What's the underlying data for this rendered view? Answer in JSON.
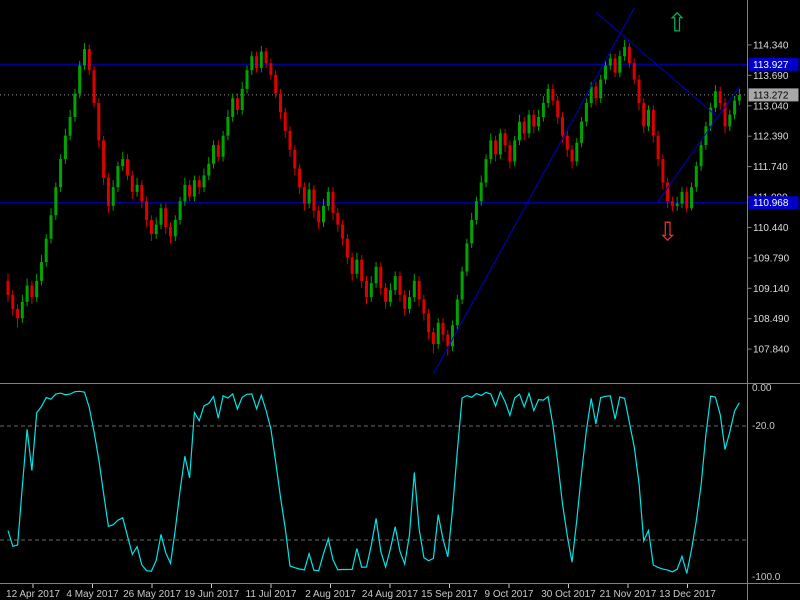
{
  "colors": {
    "background": "#000000",
    "bull": "#00A400",
    "bear": "#DD0000",
    "object_blue": "#0000C8",
    "indicator_line": "#00E5E5",
    "axis_text": "#C8C8C8",
    "price_text": "#DCDCDC",
    "divider": "#808080",
    "level_dash": "#6A6A6A",
    "current_tag_bg": "#A8A8A8",
    "current_tag_fg": "#000000",
    "hline_tag_fg": "#FFFFFF",
    "arrow_up": "#00B050",
    "arrow_down": "#E03030",
    "current_price_line": "#909090"
  },
  "chart_data": {
    "type": "candlestick",
    "x_labels": [
      "12 Apr 2017",
      "4 May 2017",
      "26 May 2017",
      "19 Jun 2017",
      "11 Jul 2017",
      "2 Aug 2017",
      "24 Aug 2017",
      "15 Sep 2017",
      "9 Oct 2017",
      "30 Oct 2017",
      "21 Nov 2017",
      "13 Dec 2017"
    ],
    "price_axis_labels": [
      "114.340",
      "113.690",
      "113.040",
      "112.390",
      "111.740",
      "111.090",
      "110.440",
      "109.790",
      "109.140",
      "108.490",
      "107.840"
    ],
    "price_axis_range": [
      107.38,
      115.3
    ],
    "current_price": 113.272,
    "current_price_label": "113.272",
    "hlines": [
      {
        "price": 113.927,
        "label": "113.927"
      },
      {
        "price": 110.968,
        "label": "110.968"
      }
    ],
    "trendlines": [
      {
        "from_index": 89,
        "from_price": 107.31,
        "to_index": 131,
        "to_price": 115.13
      },
      {
        "from_index": 123,
        "from_price": 115.04,
        "to_index": 148,
        "to_price": 112.84
      },
      {
        "from_index": 136,
        "from_price": 111.0,
        "to_index": 153,
        "to_price": 113.45
      }
    ],
    "arrows": [
      {
        "direction": "up",
        "index": 140,
        "price": 114.88
      },
      {
        "direction": "down",
        "index": 138,
        "price": 110.42
      }
    ],
    "indicator": {
      "name": "williams-percent-range",
      "type": "line",
      "period": 14,
      "range": [
        0,
        -100
      ],
      "levels": [
        -20,
        -80
      ],
      "axis_labels": [
        "0.00",
        "-20.0",
        "-100.0"
      ],
      "axis_label_values": [
        0,
        -20,
        -100
      ]
    },
    "candles": [
      [
        109.3,
        109.45,
        108.85,
        109.0
      ],
      [
        109.0,
        109.1,
        108.55,
        108.7
      ],
      [
        108.7,
        108.8,
        108.3,
        108.5
      ],
      [
        108.5,
        109.0,
        108.4,
        108.85
      ],
      [
        108.85,
        109.35,
        108.75,
        109.2
      ],
      [
        109.2,
        109.3,
        108.8,
        108.95
      ],
      [
        108.95,
        109.45,
        108.85,
        109.3
      ],
      [
        109.3,
        109.85,
        109.2,
        109.7
      ],
      [
        109.7,
        110.3,
        109.6,
        110.2
      ],
      [
        110.2,
        110.85,
        110.1,
        110.7
      ],
      [
        110.7,
        111.4,
        110.6,
        111.3
      ],
      [
        111.3,
        112.0,
        111.2,
        111.9
      ],
      [
        111.9,
        112.55,
        111.8,
        112.4
      ],
      [
        112.4,
        112.95,
        112.3,
        112.8
      ],
      [
        112.8,
        113.4,
        112.7,
        113.3
      ],
      [
        113.3,
        114.0,
        113.2,
        113.9
      ],
      [
        113.9,
        114.38,
        113.8,
        114.25
      ],
      [
        114.25,
        114.35,
        113.7,
        113.8
      ],
      [
        113.8,
        113.9,
        113.0,
        113.1
      ],
      [
        113.1,
        113.2,
        112.15,
        112.3
      ],
      [
        112.3,
        112.4,
        111.35,
        111.5
      ],
      [
        111.5,
        111.6,
        110.75,
        110.9
      ],
      [
        110.9,
        111.45,
        110.8,
        111.3
      ],
      [
        111.3,
        111.85,
        111.2,
        111.75
      ],
      [
        111.75,
        112.05,
        111.65,
        111.9
      ],
      [
        111.9,
        112.0,
        111.45,
        111.55
      ],
      [
        111.55,
        111.65,
        111.05,
        111.2
      ],
      [
        111.2,
        111.5,
        111.1,
        111.35
      ],
      [
        111.35,
        111.45,
        110.85,
        111.0
      ],
      [
        111.0,
        111.1,
        110.45,
        110.6
      ],
      [
        110.6,
        110.7,
        110.15,
        110.3
      ],
      [
        110.3,
        110.65,
        110.2,
        110.5
      ],
      [
        110.5,
        110.95,
        110.4,
        110.85
      ],
      [
        110.85,
        110.95,
        110.3,
        110.45
      ],
      [
        110.45,
        110.55,
        110.1,
        110.25
      ],
      [
        110.25,
        110.7,
        110.15,
        110.6
      ],
      [
        110.6,
        111.1,
        110.5,
        111.0
      ],
      [
        111.0,
        111.5,
        110.9,
        111.35
      ],
      [
        111.35,
        111.45,
        111.0,
        111.1
      ],
      [
        111.1,
        111.55,
        111.0,
        111.45
      ],
      [
        111.45,
        111.55,
        111.15,
        111.3
      ],
      [
        111.3,
        111.7,
        111.2,
        111.55
      ],
      [
        111.55,
        111.95,
        111.45,
        111.8
      ],
      [
        111.8,
        112.3,
        111.7,
        112.2
      ],
      [
        112.2,
        112.3,
        111.85,
        111.95
      ],
      [
        111.95,
        112.5,
        111.85,
        112.4
      ],
      [
        112.4,
        112.95,
        112.3,
        112.8
      ],
      [
        112.8,
        113.3,
        112.7,
        113.2
      ],
      [
        113.2,
        113.3,
        112.85,
        112.95
      ],
      [
        112.95,
        113.55,
        112.85,
        113.4
      ],
      [
        113.4,
        113.9,
        113.3,
        113.8
      ],
      [
        113.8,
        114.2,
        113.7,
        114.1
      ],
      [
        114.1,
        114.2,
        113.75,
        113.85
      ],
      [
        113.85,
        114.32,
        113.75,
        114.2
      ],
      [
        114.2,
        114.28,
        113.85,
        113.95
      ],
      [
        113.95,
        114.05,
        113.6,
        113.7
      ],
      [
        113.7,
        113.8,
        113.2,
        113.3
      ],
      [
        113.3,
        113.4,
        112.75,
        112.9
      ],
      [
        112.9,
        113.0,
        112.35,
        112.5
      ],
      [
        112.5,
        112.6,
        111.95,
        112.1
      ],
      [
        112.1,
        112.2,
        111.55,
        111.7
      ],
      [
        111.7,
        111.8,
        111.15,
        111.3
      ],
      [
        111.3,
        111.4,
        110.8,
        110.95
      ],
      [
        110.95,
        111.4,
        110.85,
        111.25
      ],
      [
        111.25,
        111.35,
        110.65,
        110.8
      ],
      [
        110.8,
        110.9,
        110.4,
        110.55
      ],
      [
        110.55,
        111.05,
        110.45,
        110.9
      ],
      [
        110.9,
        111.3,
        110.8,
        111.2
      ],
      [
        111.2,
        111.3,
        110.6,
        110.75
      ],
      [
        110.75,
        110.85,
        110.35,
        110.5
      ],
      [
        110.5,
        110.6,
        110.05,
        110.2
      ],
      [
        110.2,
        110.3,
        109.65,
        109.8
      ],
      [
        109.8,
        109.9,
        109.3,
        109.45
      ],
      [
        109.45,
        109.9,
        109.35,
        109.75
      ],
      [
        109.75,
        109.85,
        109.15,
        109.3
      ],
      [
        109.3,
        109.4,
        108.8,
        108.95
      ],
      [
        108.95,
        109.4,
        108.85,
        109.25
      ],
      [
        109.25,
        109.7,
        109.15,
        109.6
      ],
      [
        109.6,
        109.7,
        109.0,
        109.15
      ],
      [
        109.15,
        109.25,
        108.7,
        108.85
      ],
      [
        108.85,
        109.25,
        108.75,
        109.1
      ],
      [
        109.1,
        109.5,
        109.0,
        109.4
      ],
      [
        109.4,
        109.5,
        108.85,
        109.0
      ],
      [
        109.0,
        109.1,
        108.55,
        108.7
      ],
      [
        108.7,
        109.1,
        108.6,
        108.95
      ],
      [
        108.95,
        109.45,
        108.85,
        109.3
      ],
      [
        109.3,
        109.4,
        108.75,
        108.9
      ],
      [
        108.9,
        109.0,
        108.45,
        108.6
      ],
      [
        108.6,
        108.7,
        108.05,
        108.2
      ],
      [
        108.2,
        108.3,
        107.75,
        107.95
      ],
      [
        107.95,
        108.5,
        107.85,
        108.4
      ],
      [
        108.4,
        108.5,
        108.0,
        108.15
      ],
      [
        108.15,
        108.25,
        107.7,
        107.9
      ],
      [
        107.9,
        108.45,
        107.8,
        108.35
      ],
      [
        108.35,
        109.0,
        108.25,
        108.9
      ],
      [
        108.9,
        109.6,
        108.8,
        109.5
      ],
      [
        109.5,
        110.2,
        109.4,
        110.1
      ],
      [
        110.1,
        110.75,
        110.0,
        110.6
      ],
      [
        110.6,
        111.1,
        110.5,
        111.0
      ],
      [
        111.0,
        111.55,
        110.9,
        111.4
      ],
      [
        111.4,
        112.0,
        111.3,
        111.9
      ],
      [
        111.9,
        112.45,
        111.8,
        112.3
      ],
      [
        112.3,
        112.4,
        111.85,
        112.0
      ],
      [
        112.0,
        112.55,
        111.9,
        112.45
      ],
      [
        112.45,
        112.55,
        112.05,
        112.2
      ],
      [
        112.2,
        112.3,
        111.7,
        111.85
      ],
      [
        111.85,
        112.4,
        111.75,
        112.3
      ],
      [
        112.3,
        112.85,
        112.2,
        112.7
      ],
      [
        112.7,
        112.8,
        112.3,
        112.45
      ],
      [
        112.45,
        112.95,
        112.35,
        112.85
      ],
      [
        112.85,
        112.95,
        112.45,
        112.6
      ],
      [
        112.6,
        112.95,
        112.5,
        112.8
      ],
      [
        112.8,
        113.25,
        112.7,
        113.1
      ],
      [
        113.1,
        113.5,
        113.0,
        113.4
      ],
      [
        113.4,
        113.5,
        113.05,
        113.15
      ],
      [
        113.15,
        113.25,
        112.65,
        112.8
      ],
      [
        112.8,
        112.9,
        112.25,
        112.4
      ],
      [
        112.4,
        112.5,
        111.95,
        112.1
      ],
      [
        112.1,
        112.2,
        111.7,
        111.85
      ],
      [
        111.85,
        112.35,
        111.75,
        112.25
      ],
      [
        112.25,
        112.8,
        112.15,
        112.7
      ],
      [
        112.7,
        113.2,
        112.6,
        113.1
      ],
      [
        113.1,
        113.55,
        113.0,
        113.45
      ],
      [
        113.45,
        113.55,
        113.05,
        113.2
      ],
      [
        113.2,
        113.7,
        113.1,
        113.6
      ],
      [
        113.6,
        114.0,
        113.5,
        113.9
      ],
      [
        113.9,
        114.15,
        113.8,
        114.05
      ],
      [
        114.05,
        114.15,
        113.65,
        113.75
      ],
      [
        113.75,
        114.22,
        113.65,
        114.1
      ],
      [
        114.1,
        114.45,
        114.0,
        114.3
      ],
      [
        114.3,
        114.38,
        113.85,
        113.95
      ],
      [
        113.95,
        114.05,
        113.5,
        113.6
      ],
      [
        113.6,
        113.7,
        112.95,
        113.1
      ],
      [
        113.1,
        113.2,
        112.45,
        112.6
      ],
      [
        112.6,
        113.05,
        112.5,
        112.95
      ],
      [
        112.95,
        113.05,
        112.25,
        112.4
      ],
      [
        112.4,
        112.5,
        111.75,
        111.9
      ],
      [
        111.9,
        112.0,
        111.25,
        111.4
      ],
      [
        111.4,
        111.5,
        110.85,
        111.0
      ],
      [
        111.0,
        111.1,
        110.78,
        110.9
      ],
      [
        110.9,
        111.1,
        110.8,
        110.95
      ],
      [
        110.95,
        111.3,
        110.85,
        111.2
      ],
      [
        111.2,
        111.3,
        110.76,
        110.85
      ],
      [
        110.85,
        111.4,
        110.8,
        111.3
      ],
      [
        111.3,
        111.85,
        111.2,
        111.75
      ],
      [
        111.75,
        112.3,
        111.65,
        112.2
      ],
      [
        112.2,
        112.7,
        112.1,
        112.6
      ],
      [
        112.6,
        113.1,
        112.5,
        113.0
      ],
      [
        113.0,
        113.48,
        112.9,
        113.35
      ],
      [
        113.35,
        113.45,
        112.95,
        113.1
      ],
      [
        113.1,
        113.2,
        112.45,
        112.6
      ],
      [
        112.6,
        112.95,
        112.5,
        112.85
      ],
      [
        112.85,
        113.25,
        112.75,
        113.15
      ],
      [
        113.15,
        113.4,
        113.05,
        113.27
      ]
    ]
  }
}
